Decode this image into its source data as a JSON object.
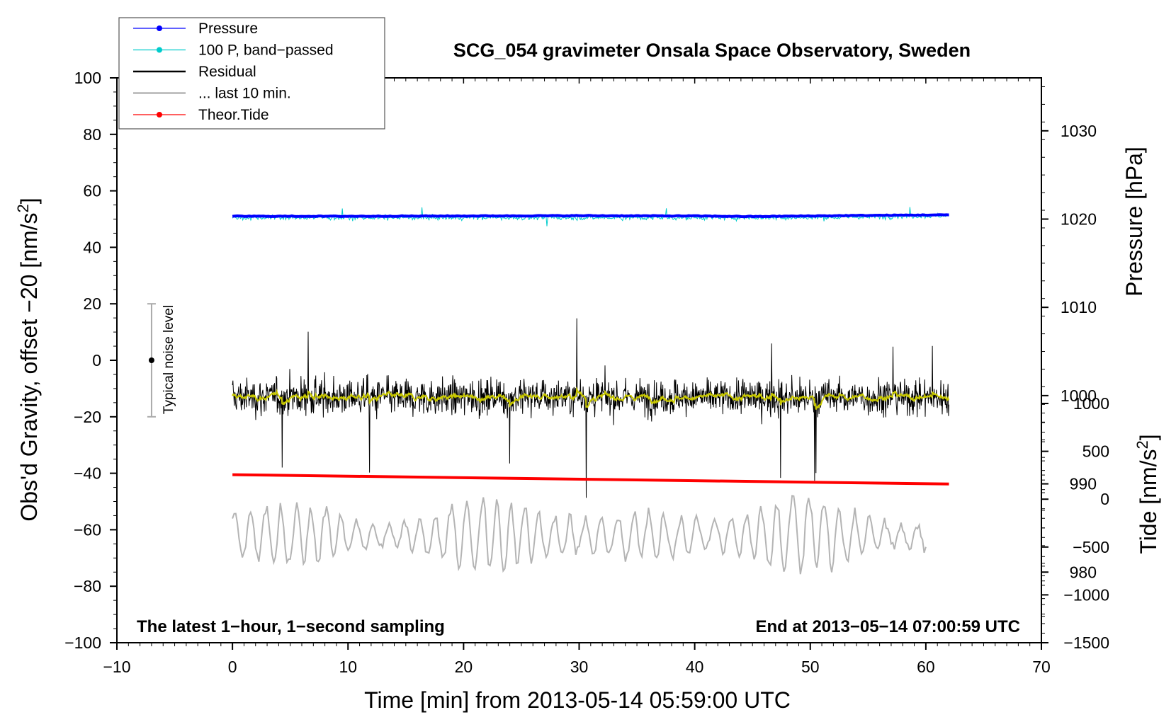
{
  "chart_data": {
    "type": "line",
    "title": "SCG_054 gravimeter Onsala Space Observatory, Sweden",
    "xlabel": "Time [min] from 2013-05-14 05:59:00 UTC",
    "ylabel_left_main": "Obs'd Gravity, offset −20 [nm/s",
    "ylabel_left_sup": "2",
    "ylabel_left_end": "]",
    "ylabel_right_upper": "Pressure [hPa]",
    "ylabel_right_lower_main": "Tide [nm/s",
    "ylabel_right_lower_sup": "2",
    "ylabel_right_lower_end": "]",
    "xlim": [
      -10,
      70
    ],
    "ylim": [
      -100,
      100
    ],
    "pressure_axis_range": [
      972,
      1036
    ],
    "tide_axis_range": [
      -1500,
      1000
    ],
    "x_ticks": [
      {
        "value": -10,
        "label": "−10"
      },
      {
        "value": 0,
        "label": "0"
      },
      {
        "value": 10,
        "label": "10"
      },
      {
        "value": 20,
        "label": "20"
      },
      {
        "value": 30,
        "label": "30"
      },
      {
        "value": 40,
        "label": "40"
      },
      {
        "value": 50,
        "label": "50"
      },
      {
        "value": 60,
        "label": "60"
      },
      {
        "value": 70,
        "label": "70"
      }
    ],
    "y_ticks": [
      {
        "value": 100,
        "label": "100"
      },
      {
        "value": 80,
        "label": "80"
      },
      {
        "value": 60,
        "label": "60"
      },
      {
        "value": 40,
        "label": "40"
      },
      {
        "value": 20,
        "label": "20"
      },
      {
        "value": 0,
        "label": "0"
      },
      {
        "value": -20,
        "label": "−20"
      },
      {
        "value": -40,
        "label": "−40"
      },
      {
        "value": -60,
        "label": "−60"
      },
      {
        "value": -80,
        "label": "−80"
      },
      {
        "value": -100,
        "label": "−100"
      }
    ],
    "pressure_ticks": [
      {
        "value": 1030,
        "label": "1030"
      },
      {
        "value": 1020,
        "label": "1020"
      },
      {
        "value": 1010,
        "label": "1010"
      },
      {
        "value": 1000,
        "label": "1000"
      },
      {
        "value": 990,
        "label": "990"
      },
      {
        "value": 980,
        "label": "980"
      }
    ],
    "tide_ticks": [
      {
        "value": 1000,
        "label": "1000"
      },
      {
        "value": 500,
        "label": "500"
      },
      {
        "value": 0,
        "label": "0"
      },
      {
        "value": -500,
        "label": "−500"
      },
      {
        "value": -1000,
        "label": "−1000"
      },
      {
        "value": -1500,
        "label": "−1500"
      }
    ],
    "legend": [
      {
        "label": "Pressure",
        "color": "#0000ff",
        "marker": true
      },
      {
        "label": "100 P, band−passed",
        "color": "#00cccc",
        "marker": true
      },
      {
        "label": "Residual",
        "color": "#000000",
        "marker": false
      },
      {
        "label": "... last 10 min.",
        "color": "#b4b4b4",
        "marker": false
      },
      {
        "label": "Theor.Tide",
        "color": "#ff0000",
        "marker": true
      }
    ],
    "annotations": {
      "left_note": "The latest 1−hour, 1−second sampling",
      "right_note": "End at 2013−05−14 07:00:59 UTC",
      "noise_label": "Typical noise level"
    },
    "noise_bar": {
      "x": -7,
      "center": 0,
      "low": -20,
      "high": 20
    },
    "series": [
      {
        "name": "Pressure",
        "color": "#0000ff",
        "x": [
          0,
          10,
          20,
          30,
          40,
          45,
          50,
          55,
          62
        ],
        "y": [
          51.0,
          51.0,
          51.1,
          51.2,
          51.1,
          50.9,
          51.1,
          51.3,
          51.5
        ]
      },
      {
        "name": "100 P, band-passed",
        "color": "#00cccc",
        "x_range": [
          0,
          62
        ],
        "center": 50.5,
        "amplitude": 1.6
      },
      {
        "name": "Residual",
        "color": "#000000",
        "x_range": [
          0,
          62
        ],
        "center": -13,
        "amplitude": 9
      },
      {
        "name": "Residual smoothed",
        "color": "#c8c800",
        "x_range": [
          0,
          62
        ],
        "center": -13,
        "amplitude": 1.2
      },
      {
        "name": "Theor.Tide",
        "color": "#ff0000",
        "x": [
          0,
          62
        ],
        "y": [
          -40.5,
          -43.8
        ]
      },
      {
        "name": "... last 10 min.",
        "color": "#b4b4b4",
        "x_range": [
          0,
          60
        ],
        "center": -62,
        "amplitude": 11
      }
    ]
  }
}
